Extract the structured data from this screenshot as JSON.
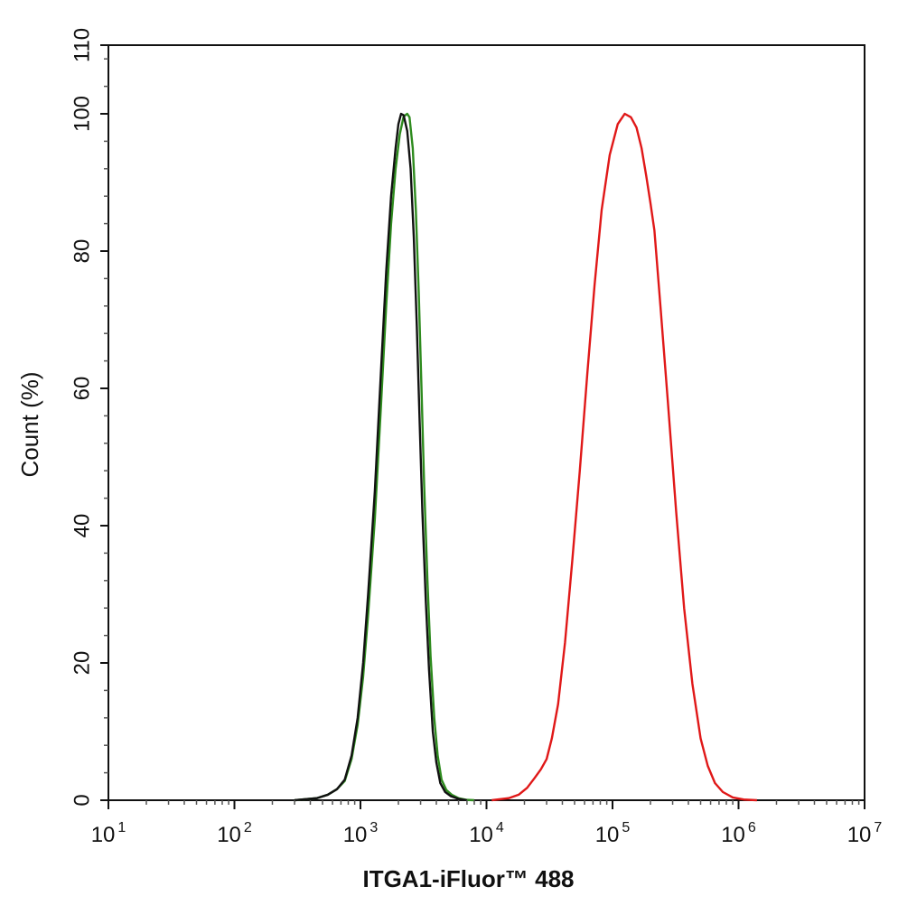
{
  "chart_data": {
    "type": "line",
    "xlabel": "ITGA1-iFluor™ 488",
    "ylabel": "Count  (%)",
    "xscale": "log",
    "xlim": [
      10,
      10000000
    ],
    "ylim": [
      0,
      110
    ],
    "grid": false,
    "legend": "none",
    "x_ticks": [
      {
        "base": "10",
        "exp": "1"
      },
      {
        "base": "10",
        "exp": "2"
      },
      {
        "base": "10",
        "exp": "3"
      },
      {
        "base": "10",
        "exp": "4"
      },
      {
        "base": "10",
        "exp": "5"
      },
      {
        "base": "10",
        "exp": "6"
      },
      {
        "base": "10",
        "exp": "7"
      }
    ],
    "y_ticks": [
      "0",
      "20",
      "40",
      "60",
      "80",
      "100",
      "110"
    ],
    "y_tick_values": [
      0,
      20,
      40,
      60,
      80,
      100,
      110
    ],
    "series": [
      {
        "color": "#2e8b1e",
        "points": [
          [
            300,
            0
          ],
          [
            450,
            0.3
          ],
          [
            550,
            0.8
          ],
          [
            650,
            1.6
          ],
          [
            750,
            2.8
          ],
          [
            850,
            6
          ],
          [
            950,
            11
          ],
          [
            1050,
            18
          ],
          [
            1150,
            27
          ],
          [
            1300,
            41
          ],
          [
            1450,
            57
          ],
          [
            1600,
            72
          ],
          [
            1750,
            84
          ],
          [
            1900,
            92
          ],
          [
            2050,
            97
          ],
          [
            2200,
            99.6
          ],
          [
            2350,
            100
          ],
          [
            2450,
            99.5
          ],
          [
            2600,
            95
          ],
          [
            2750,
            86
          ],
          [
            2900,
            74
          ],
          [
            3050,
            60
          ],
          [
            3200,
            46
          ],
          [
            3400,
            32
          ],
          [
            3600,
            21
          ],
          [
            3850,
            12
          ],
          [
            4100,
            6.5
          ],
          [
            4400,
            3
          ],
          [
            4800,
            1.5
          ],
          [
            5300,
            0.8
          ],
          [
            6000,
            0.3
          ],
          [
            7000,
            0.05
          ],
          [
            8000,
            0
          ]
        ]
      },
      {
        "color": "#111111",
        "points": [
          [
            300,
            0
          ],
          [
            450,
            0.3
          ],
          [
            550,
            0.8
          ],
          [
            650,
            1.6
          ],
          [
            750,
            3
          ],
          [
            850,
            6.5
          ],
          [
            950,
            12
          ],
          [
            1050,
            20
          ],
          [
            1150,
            30
          ],
          [
            1300,
            45
          ],
          [
            1450,
            62
          ],
          [
            1600,
            77
          ],
          [
            1750,
            88
          ],
          [
            1900,
            95
          ],
          [
            2000,
            98.5
          ],
          [
            2100,
            100
          ],
          [
            2200,
            99.8
          ],
          [
            2350,
            97.5
          ],
          [
            2500,
            92
          ],
          [
            2650,
            82
          ],
          [
            2800,
            69
          ],
          [
            2950,
            55
          ],
          [
            3100,
            42
          ],
          [
            3300,
            29
          ],
          [
            3500,
            19
          ],
          [
            3750,
            10
          ],
          [
            4000,
            5.5
          ],
          [
            4300,
            2.5
          ],
          [
            4700,
            1.2
          ],
          [
            5200,
            0.6
          ],
          [
            6000,
            0.2
          ],
          [
            7000,
            0
          ]
        ]
      },
      {
        "color": "#e01818",
        "points": [
          [
            11000,
            0
          ],
          [
            15000,
            0.3
          ],
          [
            18000,
            0.8
          ],
          [
            21000,
            1.8
          ],
          [
            24000,
            3.2
          ],
          [
            27000,
            4.5
          ],
          [
            30000,
            6
          ],
          [
            33000,
            9
          ],
          [
            37000,
            14
          ],
          [
            42000,
            23
          ],
          [
            48000,
            35
          ],
          [
            55000,
            48
          ],
          [
            63000,
            62
          ],
          [
            72000,
            75
          ],
          [
            82000,
            86
          ],
          [
            95000,
            94
          ],
          [
            110000,
            98.5
          ],
          [
            125000,
            100
          ],
          [
            140000,
            99.5
          ],
          [
            155000,
            98
          ],
          [
            170000,
            95
          ],
          [
            185000,
            91
          ],
          [
            200000,
            87
          ],
          [
            215000,
            83
          ],
          [
            240000,
            72
          ],
          [
            275000,
            58
          ],
          [
            320000,
            42
          ],
          [
            370000,
            28
          ],
          [
            430000,
            17
          ],
          [
            500000,
            9
          ],
          [
            570000,
            5
          ],
          [
            650000,
            2.5
          ],
          [
            750000,
            1.2
          ],
          [
            900000,
            0.4
          ],
          [
            1100000,
            0.1
          ],
          [
            1400000,
            0
          ]
        ]
      }
    ]
  }
}
